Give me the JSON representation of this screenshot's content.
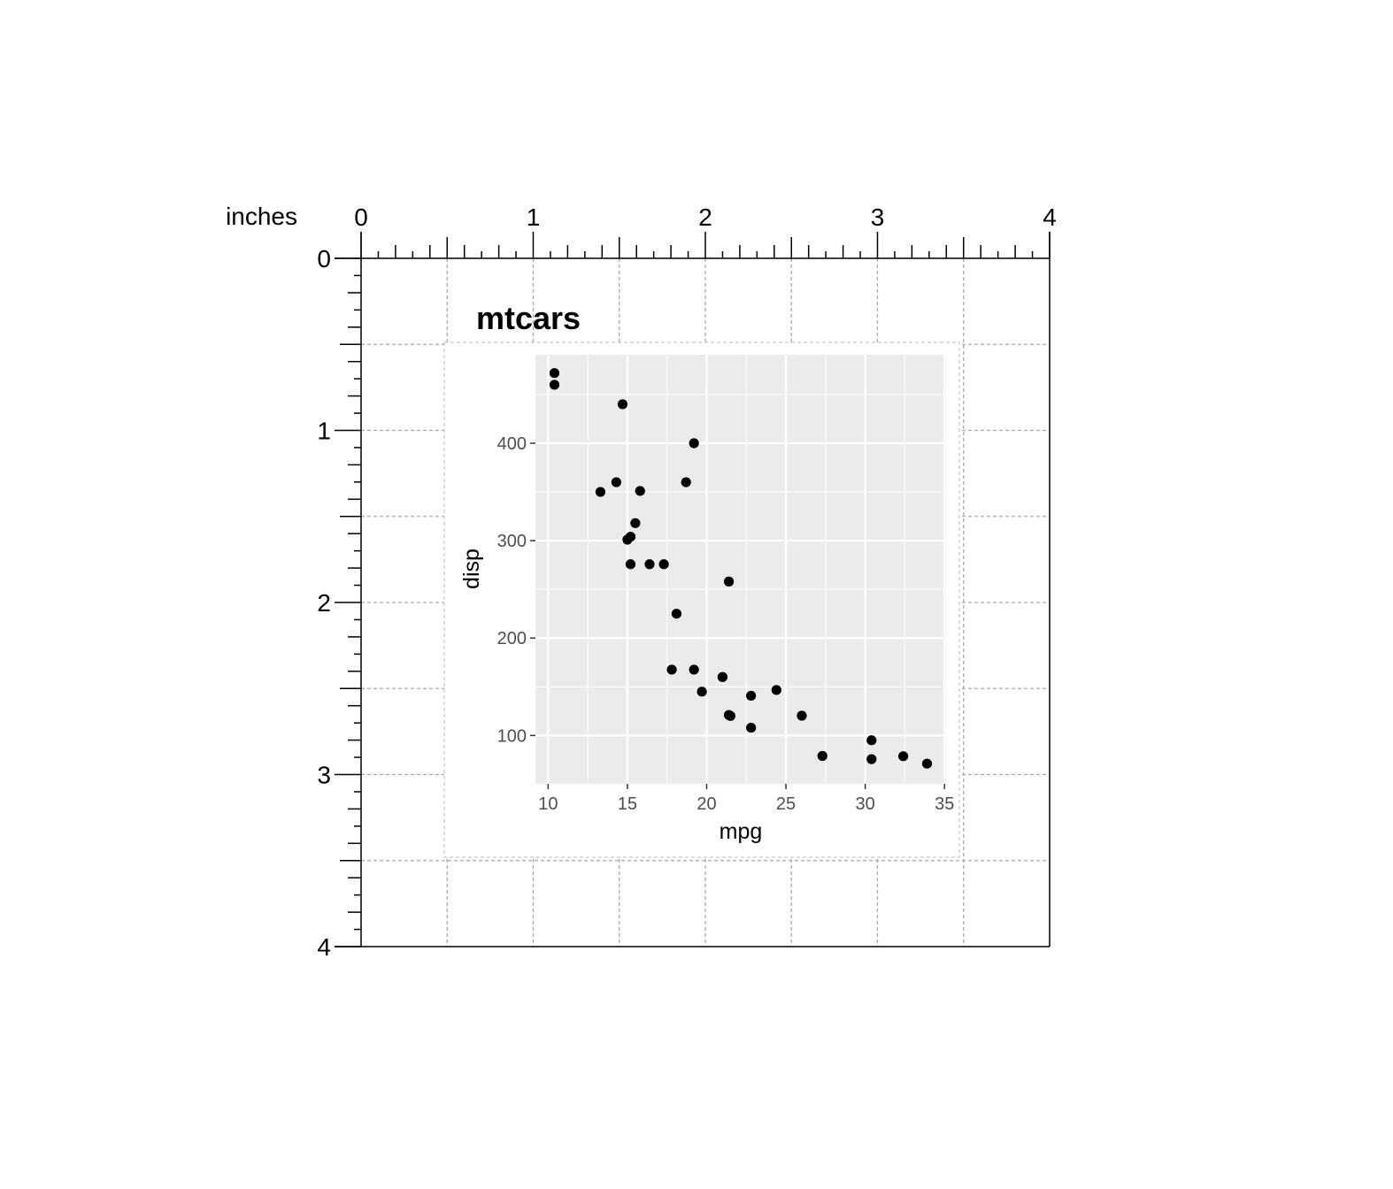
{
  "ruler": {
    "unit_label": "inches",
    "x_ticks": [
      "0",
      "1",
      "2",
      "3",
      "4"
    ],
    "y_ticks": [
      "0",
      "1",
      "2",
      "3",
      "4"
    ]
  },
  "colors": {
    "panel_background": "#ebebeb",
    "panel_grid": "#ffffff",
    "point": "#000000",
    "guide_dash": "#aaaaaa",
    "tick_text": "#4d4d4d"
  },
  "chart_data": {
    "type": "scatter",
    "title": "mtcars",
    "xlabel": "mpg",
    "ylabel": "disp",
    "xlim": [
      9.2,
      35.1
    ],
    "ylim": [
      50.4,
      490.8
    ],
    "x_ticks": [
      10,
      15,
      20,
      25,
      30,
      35
    ],
    "y_ticks": [
      100,
      200,
      300,
      400
    ],
    "x_tick_labels": [
      "10",
      "15",
      "20",
      "25",
      "30",
      "35"
    ],
    "y_tick_labels": [
      "100",
      "200",
      "300",
      "400"
    ],
    "grid": true,
    "points": [
      {
        "x": 21.0,
        "y": 160.0
      },
      {
        "x": 21.0,
        "y": 160.0
      },
      {
        "x": 22.8,
        "y": 108.0
      },
      {
        "x": 21.4,
        "y": 258.0
      },
      {
        "x": 18.7,
        "y": 360.0
      },
      {
        "x": 18.1,
        "y": 225.0
      },
      {
        "x": 14.3,
        "y": 360.0
      },
      {
        "x": 24.4,
        "y": 146.7
      },
      {
        "x": 22.8,
        "y": 140.8
      },
      {
        "x": 19.2,
        "y": 167.6
      },
      {
        "x": 17.8,
        "y": 167.6
      },
      {
        "x": 16.4,
        "y": 275.8
      },
      {
        "x": 17.3,
        "y": 275.8
      },
      {
        "x": 15.2,
        "y": 275.8
      },
      {
        "x": 10.4,
        "y": 472.0
      },
      {
        "x": 10.4,
        "y": 460.0
      },
      {
        "x": 14.7,
        "y": 440.0
      },
      {
        "x": 32.4,
        "y": 78.7
      },
      {
        "x": 30.4,
        "y": 75.7
      },
      {
        "x": 33.9,
        "y": 71.1
      },
      {
        "x": 21.5,
        "y": 120.1
      },
      {
        "x": 15.5,
        "y": 318.0
      },
      {
        "x": 15.2,
        "y": 304.0
      },
      {
        "x": 13.3,
        "y": 350.0
      },
      {
        "x": 19.2,
        "y": 400.0
      },
      {
        "x": 27.3,
        "y": 79.0
      },
      {
        "x": 26.0,
        "y": 120.3
      },
      {
        "x": 30.4,
        "y": 95.1
      },
      {
        "x": 15.8,
        "y": 351.0
      },
      {
        "x": 19.7,
        "y": 145.0
      },
      {
        "x": 15.0,
        "y": 301.0
      },
      {
        "x": 21.4,
        "y": 121.0
      }
    ]
  }
}
